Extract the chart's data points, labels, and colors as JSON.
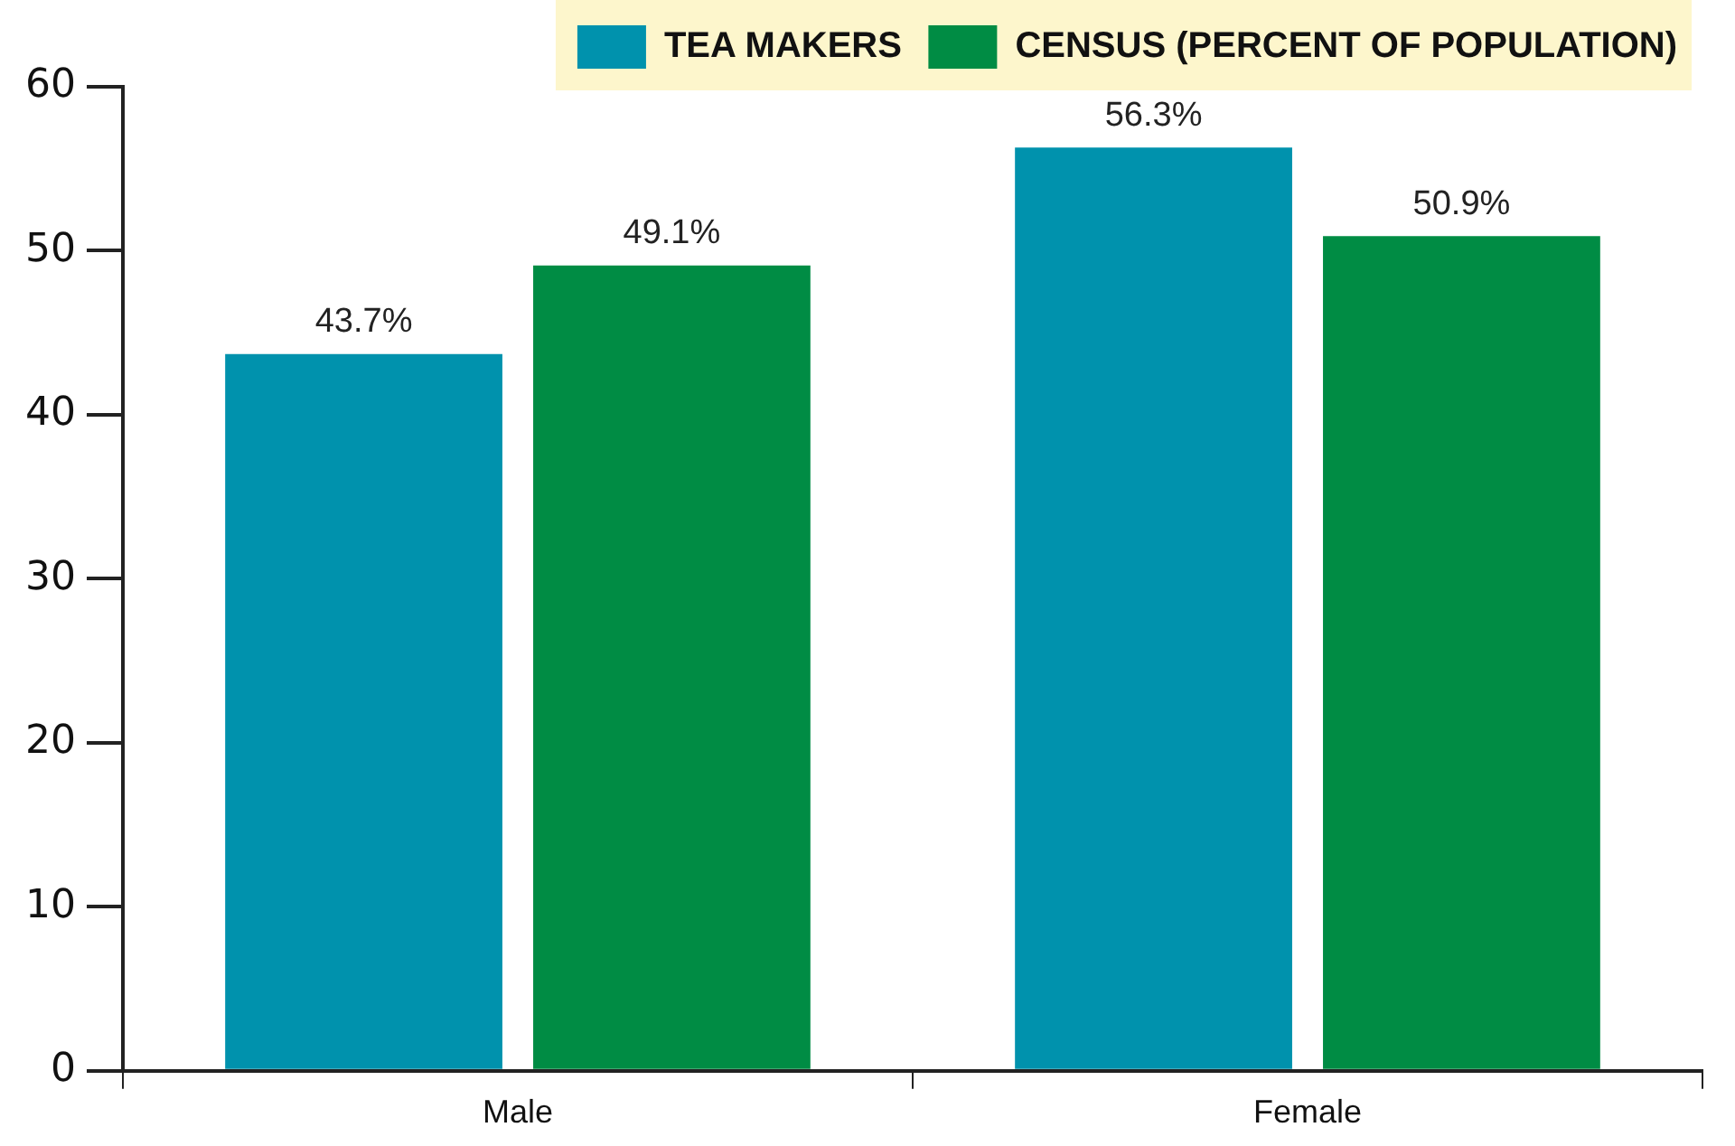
{
  "chart_data": {
    "type": "bar",
    "categories": [
      "Male",
      "Female"
    ],
    "series": [
      {
        "name": "TEA MAKERS",
        "color": "#0092ad",
        "values": [
          43.7,
          56.3
        ],
        "value_labels": [
          "43.7%",
          "56.3%"
        ]
      },
      {
        "name": "CENSUS (PERCENT OF POPULATION)",
        "color": "#008c44",
        "values": [
          49.1,
          50.9
        ],
        "value_labels": [
          "49.1%",
          "50.9%"
        ]
      }
    ],
    "ylim": [
      0,
      60
    ],
    "yticks": [
      0,
      10,
      20,
      30,
      40,
      50,
      60
    ],
    "grid": false,
    "legend": "top right"
  }
}
